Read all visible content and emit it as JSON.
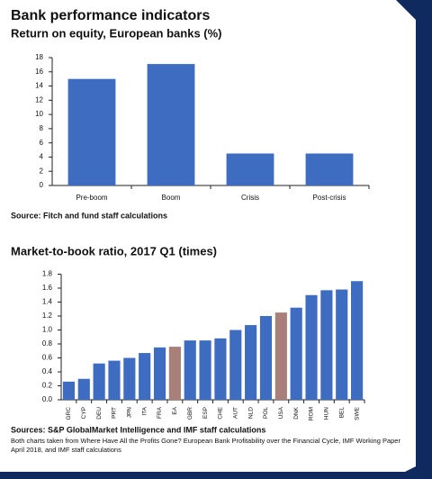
{
  "title": "Bank performance indicators",
  "chart_data": [
    {
      "type": "bar",
      "title": "Return on equity, European banks (%)",
      "categories": [
        "Pre-boom",
        "Boom",
        "Crisis",
        "Post-crisis"
      ],
      "values": [
        15,
        17.1,
        4.5,
        4.5
      ],
      "color": "#3d6cc0",
      "ylim": [
        0,
        18
      ],
      "yticks": [
        0,
        2,
        4,
        6,
        8,
        10,
        12,
        14,
        16,
        18
      ],
      "source": "Source: Fitch and fund staff calculations"
    },
    {
      "type": "bar",
      "title": "Market-to-book ratio, 2017 Q1 (times)",
      "categories": [
        "GRC",
        "CYP",
        "DEU",
        "PRT",
        "JPN",
        "ITA",
        "FRA",
        "EA",
        "GBR",
        "ESP",
        "CHE",
        "AUT",
        "NLD",
        "POL",
        "USA",
        "DNK",
        "ROM",
        "HUN",
        "BEL",
        "SWE"
      ],
      "values": [
        0.26,
        0.3,
        0.52,
        0.56,
        0.6,
        0.67,
        0.75,
        0.76,
        0.85,
        0.85,
        0.88,
        1.0,
        1.07,
        1.2,
        1.25,
        1.32,
        1.5,
        1.57,
        1.58,
        1.7
      ],
      "colors": [
        "#3d6cc0",
        "#3d6cc0",
        "#3d6cc0",
        "#3d6cc0",
        "#3d6cc0",
        "#3d6cc0",
        "#3d6cc0",
        "#a97f7a",
        "#3d6cc0",
        "#3d6cc0",
        "#3d6cc0",
        "#3d6cc0",
        "#3d6cc0",
        "#3d6cc0",
        "#a97f7a",
        "#3d6cc0",
        "#3d6cc0",
        "#3d6cc0",
        "#3d6cc0",
        "#3d6cc0"
      ],
      "ylim": [
        0,
        1.8
      ],
      "yticks": [
        {
          "value": 0,
          "label": "0.0"
        },
        0.2,
        0.4,
        0.6,
        0.8,
        {
          "value": 1,
          "label": "1.0"
        },
        1.2,
        1.4,
        1.6,
        1.8
      ],
      "source": "Sources: S&P GlobalMarket Intelligence and IMF staff calculations"
    }
  ],
  "note": "Both charts taken from Where Have All the Profits Gone? European Bank Profitability over the Financial Cycle, IMF Working Paper April 2018, and IMF staff calculations"
}
